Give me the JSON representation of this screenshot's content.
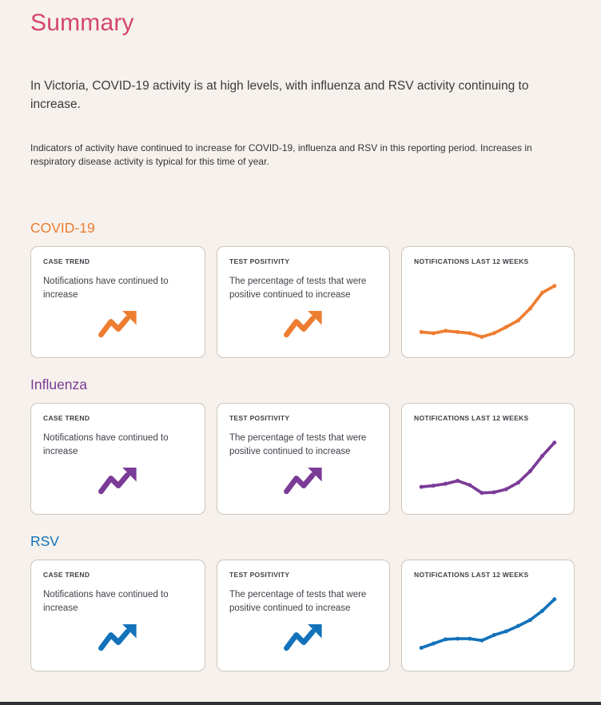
{
  "page": {
    "title": "Summary",
    "intro": "In Victoria, COVID-19 activity is at high levels, with influenza and RSV activity continuing to increase.",
    "note": "Indicators of activity have continued to increase for COVID-19, influenza and RSV in this reporting period. Increases in respiratory disease activity is typical for this time of year."
  },
  "colors": {
    "background": "#f6f1ec",
    "title_pink": "#d5456f",
    "covid_accent": "#ed7d31",
    "influenza_accent": "#7a3b96",
    "rsv_accent": "#1272ba",
    "card_border": "#ccc5bc",
    "body_text": "#3b3b3b",
    "bottom_bar": "#32323c"
  },
  "card_icon": "trend-up-arrow-icon",
  "sections": [
    {
      "heading": "COVID-19",
      "color": "#ed7d31",
      "cards": [
        {
          "label": "CASE TREND",
          "text": "Notifications have continued to increase"
        },
        {
          "label": "TEST POSITIVITY",
          "text": "The percentage of tests that were positive continued to increase"
        },
        {
          "label": "NOTIFICATIONS LAST 12 WEEKS"
        }
      ]
    },
    {
      "heading": "Influenza",
      "color": "#7a3b96",
      "cards": [
        {
          "label": "CASE TREND",
          "text": "Notifications have continued to increase"
        },
        {
          "label": "TEST POSITIVITY",
          "text": "The percentage of tests that were positive continued to increase"
        },
        {
          "label": "NOTIFICATIONS LAST 12 WEEKS"
        }
      ]
    },
    {
      "heading": "RSV",
      "color": "#1272ba",
      "cards": [
        {
          "label": "CASE TREND",
          "text": "Notifications have continued to increase"
        },
        {
          "label": "TEST POSITIVITY",
          "text": "The percentage of tests that were positive continued to increase"
        },
        {
          "label": "NOTIFICATIONS LAST 12 WEEKS"
        }
      ]
    }
  ],
  "chart_data": [
    {
      "type": "line",
      "title": "COVID-19 notifications last 12 weeks",
      "x": [
        1,
        2,
        3,
        4,
        5,
        6,
        7,
        8,
        9,
        10,
        11,
        12
      ],
      "xlabel": "week",
      "ylabel": "notifications (relative, unlabeled axis)",
      "values": [
        15,
        13,
        17,
        15,
        13,
        7,
        13,
        23,
        34,
        54,
        80,
        91
      ],
      "ylim": [
        0,
        100
      ],
      "color": "#ed7d31",
      "markers": true,
      "axes_hidden": true,
      "grid": false,
      "legend": false
    },
    {
      "type": "line",
      "title": "Influenza notifications last 12 weeks",
      "x": [
        1,
        2,
        3,
        4,
        5,
        6,
        7,
        8,
        9,
        10,
        11,
        12
      ],
      "xlabel": "week",
      "ylabel": "notifications (relative, unlabeled axis)",
      "values": [
        18,
        20,
        23,
        28,
        21,
        8,
        9,
        14,
        25,
        44,
        69,
        91
      ],
      "ylim": [
        0,
        100
      ],
      "color": "#7a3b96",
      "markers": true,
      "axes_hidden": true,
      "grid": false,
      "legend": false
    },
    {
      "type": "line",
      "title": "RSV notifications last 12 weeks",
      "x": [
        1,
        2,
        3,
        4,
        5,
        6,
        7,
        8,
        9,
        10,
        11,
        12
      ],
      "xlabel": "week",
      "ylabel": "notifications (relative, unlabeled axis)",
      "values": [
        11,
        18,
        25,
        26,
        26,
        23,
        32,
        38,
        47,
        57,
        72,
        91
      ],
      "ylim": [
        0,
        100
      ],
      "color": "#1272ba",
      "markers": true,
      "axes_hidden": true,
      "grid": false,
      "legend": false
    }
  ]
}
